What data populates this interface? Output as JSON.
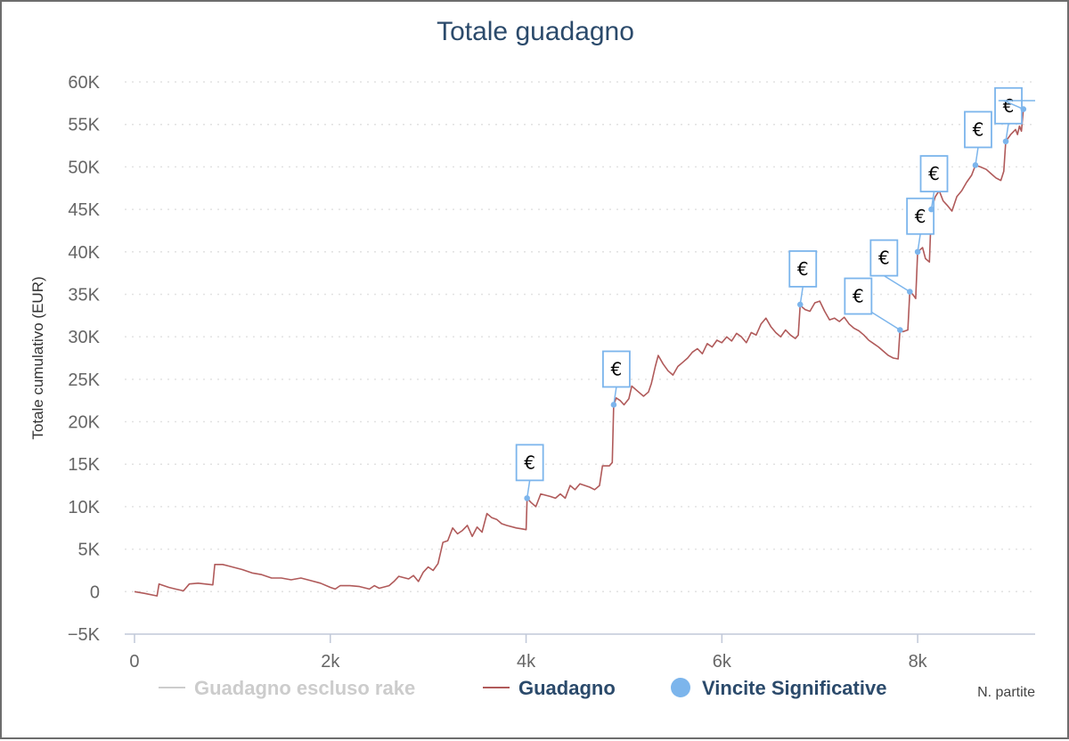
{
  "chart_data": {
    "type": "line",
    "title": "Totale guadagno",
    "xlabel": "N. partite",
    "ylabel": "Totale cumulativo (EUR)",
    "xlim": [
      -100,
      9200
    ],
    "ylim": [
      -5000,
      60000
    ],
    "x_ticks": [
      {
        "value": 0,
        "label": "0"
      },
      {
        "value": 2000,
        "label": "2k"
      },
      {
        "value": 4000,
        "label": "4k"
      },
      {
        "value": 6000,
        "label": "6k"
      },
      {
        "value": 8000,
        "label": "8k"
      }
    ],
    "y_ticks": [
      {
        "value": -5000,
        "label": "−5K"
      },
      {
        "value": 0,
        "label": "0"
      },
      {
        "value": 5000,
        "label": "5K"
      },
      {
        "value": 10000,
        "label": "10K"
      },
      {
        "value": 15000,
        "label": "15K"
      },
      {
        "value": 20000,
        "label": "20K"
      },
      {
        "value": 25000,
        "label": "25K"
      },
      {
        "value": 30000,
        "label": "30K"
      },
      {
        "value": 35000,
        "label": "35K"
      },
      {
        "value": 40000,
        "label": "40K"
      },
      {
        "value": 45000,
        "label": "45K"
      },
      {
        "value": 50000,
        "label": "50K"
      },
      {
        "value": 55000,
        "label": "55K"
      },
      {
        "value": 60000,
        "label": "60K"
      }
    ],
    "grid": "horizontal-dotted",
    "legend_position": "bottom",
    "legend": [
      {
        "name": "Guadagno escluso rake",
        "symbol": "line",
        "color": "#cccccc",
        "text_color": "#cccccc"
      },
      {
        "name": "Guadagno",
        "symbol": "line",
        "color": "#b05a5a",
        "text_color": "#2b4a6b"
      },
      {
        "name": "Vincite Significative",
        "symbol": "circle",
        "color": "#7cb5ec",
        "text_color": "#2b4a6b"
      }
    ],
    "series": [
      {
        "name": "Guadagno",
        "color": "#b05a5a",
        "points": [
          [
            0,
            0
          ],
          [
            100,
            -200
          ],
          [
            230,
            -500
          ],
          [
            250,
            900
          ],
          [
            350,
            500
          ],
          [
            420,
            300
          ],
          [
            500,
            100
          ],
          [
            560,
            900
          ],
          [
            650,
            1000
          ],
          [
            720,
            900
          ],
          [
            800,
            800
          ],
          [
            820,
            3200
          ],
          [
            900,
            3200
          ],
          [
            1000,
            2900
          ],
          [
            1100,
            2600
          ],
          [
            1200,
            2200
          ],
          [
            1300,
            2000
          ],
          [
            1400,
            1600
          ],
          [
            1500,
            1600
          ],
          [
            1600,
            1400
          ],
          [
            1700,
            1600
          ],
          [
            1800,
            1300
          ],
          [
            1900,
            1000
          ],
          [
            2000,
            500
          ],
          [
            2050,
            300
          ],
          [
            2100,
            700
          ],
          [
            2200,
            700
          ],
          [
            2300,
            600
          ],
          [
            2400,
            300
          ],
          [
            2450,
            700
          ],
          [
            2500,
            400
          ],
          [
            2600,
            700
          ],
          [
            2650,
            1200
          ],
          [
            2700,
            1800
          ],
          [
            2800,
            1500
          ],
          [
            2850,
            1900
          ],
          [
            2900,
            1200
          ],
          [
            2950,
            2300
          ],
          [
            3000,
            2900
          ],
          [
            3050,
            2500
          ],
          [
            3100,
            3300
          ],
          [
            3150,
            5800
          ],
          [
            3200,
            6000
          ],
          [
            3250,
            7500
          ],
          [
            3300,
            6800
          ],
          [
            3350,
            7200
          ],
          [
            3400,
            7800
          ],
          [
            3450,
            6500
          ],
          [
            3500,
            7600
          ],
          [
            3550,
            7000
          ],
          [
            3600,
            9200
          ],
          [
            3650,
            8700
          ],
          [
            3700,
            8500
          ],
          [
            3750,
            8000
          ],
          [
            3800,
            7800
          ],
          [
            3900,
            7500
          ],
          [
            3950,
            7400
          ],
          [
            4000,
            7300
          ],
          [
            4010,
            11000
          ],
          [
            4050,
            10500
          ],
          [
            4100,
            10000
          ],
          [
            4150,
            11500
          ],
          [
            4250,
            11200
          ],
          [
            4300,
            11000
          ],
          [
            4350,
            11500
          ],
          [
            4400,
            11000
          ],
          [
            4450,
            12500
          ],
          [
            4500,
            12000
          ],
          [
            4550,
            12700
          ],
          [
            4650,
            12300
          ],
          [
            4700,
            12000
          ],
          [
            4750,
            12500
          ],
          [
            4780,
            14800
          ],
          [
            4850,
            14800
          ],
          [
            4880,
            15200
          ],
          [
            4895,
            22000
          ],
          [
            4920,
            22800
          ],
          [
            4960,
            22500
          ],
          [
            5000,
            22000
          ],
          [
            5050,
            22700
          ],
          [
            5080,
            24200
          ],
          [
            5150,
            23500
          ],
          [
            5200,
            23000
          ],
          [
            5250,
            23500
          ],
          [
            5280,
            24500
          ],
          [
            5320,
            26500
          ],
          [
            5350,
            27800
          ],
          [
            5400,
            26800
          ],
          [
            5450,
            26000
          ],
          [
            5500,
            25500
          ],
          [
            5550,
            26500
          ],
          [
            5600,
            27000
          ],
          [
            5650,
            27500
          ],
          [
            5700,
            28200
          ],
          [
            5750,
            28600
          ],
          [
            5800,
            28000
          ],
          [
            5850,
            29200
          ],
          [
            5900,
            28800
          ],
          [
            5950,
            29600
          ],
          [
            6000,
            29300
          ],
          [
            6050,
            30000
          ],
          [
            6100,
            29500
          ],
          [
            6150,
            30400
          ],
          [
            6200,
            30000
          ],
          [
            6250,
            29300
          ],
          [
            6300,
            30500
          ],
          [
            6350,
            30200
          ],
          [
            6400,
            31500
          ],
          [
            6450,
            32200
          ],
          [
            6500,
            31200
          ],
          [
            6550,
            30500
          ],
          [
            6600,
            30000
          ],
          [
            6650,
            30800
          ],
          [
            6700,
            30200
          ],
          [
            6750,
            29800
          ],
          [
            6780,
            30200
          ],
          [
            6800,
            33800
          ],
          [
            6820,
            33500
          ],
          [
            6850,
            33200
          ],
          [
            6900,
            33000
          ],
          [
            6950,
            34000
          ],
          [
            7000,
            34200
          ],
          [
            7050,
            33000
          ],
          [
            7100,
            32000
          ],
          [
            7150,
            32200
          ],
          [
            7200,
            31800
          ],
          [
            7250,
            32300
          ],
          [
            7300,
            31500
          ],
          [
            7350,
            31000
          ],
          [
            7400,
            30700
          ],
          [
            7450,
            30200
          ],
          [
            7500,
            29600
          ],
          [
            7550,
            29200
          ],
          [
            7600,
            28800
          ],
          [
            7650,
            28300
          ],
          [
            7700,
            27800
          ],
          [
            7750,
            27500
          ],
          [
            7800,
            27400
          ],
          [
            7820,
            30800
          ],
          [
            7850,
            30600
          ],
          [
            7900,
            30800
          ],
          [
            7920,
            35300
          ],
          [
            7950,
            35000
          ],
          [
            7980,
            34500
          ],
          [
            8000,
            40000
          ],
          [
            8050,
            40500
          ],
          [
            8080,
            39200
          ],
          [
            8120,
            38800
          ],
          [
            8140,
            45000
          ],
          [
            8180,
            46500
          ],
          [
            8220,
            47200
          ],
          [
            8260,
            46000
          ],
          [
            8300,
            45500
          ],
          [
            8350,
            44800
          ],
          [
            8400,
            46500
          ],
          [
            8450,
            47200
          ],
          [
            8500,
            48200
          ],
          [
            8550,
            49000
          ],
          [
            8590,
            50200
          ],
          [
            8640,
            50000
          ],
          [
            8700,
            49700
          ],
          [
            8750,
            49200
          ],
          [
            8800,
            48700
          ],
          [
            8850,
            48400
          ],
          [
            8880,
            49500
          ],
          [
            8900,
            53000
          ],
          [
            8950,
            53800
          ],
          [
            9000,
            54400
          ],
          [
            9020,
            53800
          ],
          [
            9040,
            54800
          ],
          [
            9060,
            54200
          ],
          [
            9080,
            56800
          ]
        ]
      }
    ],
    "significant_wins": [
      {
        "x": 4010,
        "y": 11000,
        "label": "€"
      },
      {
        "x": 4895,
        "y": 22000,
        "label": "€"
      },
      {
        "x": 6800,
        "y": 33800,
        "label": "€"
      },
      {
        "x": 7820,
        "y": 30800,
        "label": "€"
      },
      {
        "x": 7920,
        "y": 35300,
        "label": "€"
      },
      {
        "x": 8000,
        "y": 40000,
        "label": "€"
      },
      {
        "x": 8140,
        "y": 45000,
        "label": "€"
      },
      {
        "x": 8590,
        "y": 50200,
        "label": "€"
      },
      {
        "x": 8900,
        "y": 53000,
        "label": "€"
      },
      {
        "x": 9080,
        "y": 56800,
        "label": "€"
      }
    ]
  }
}
